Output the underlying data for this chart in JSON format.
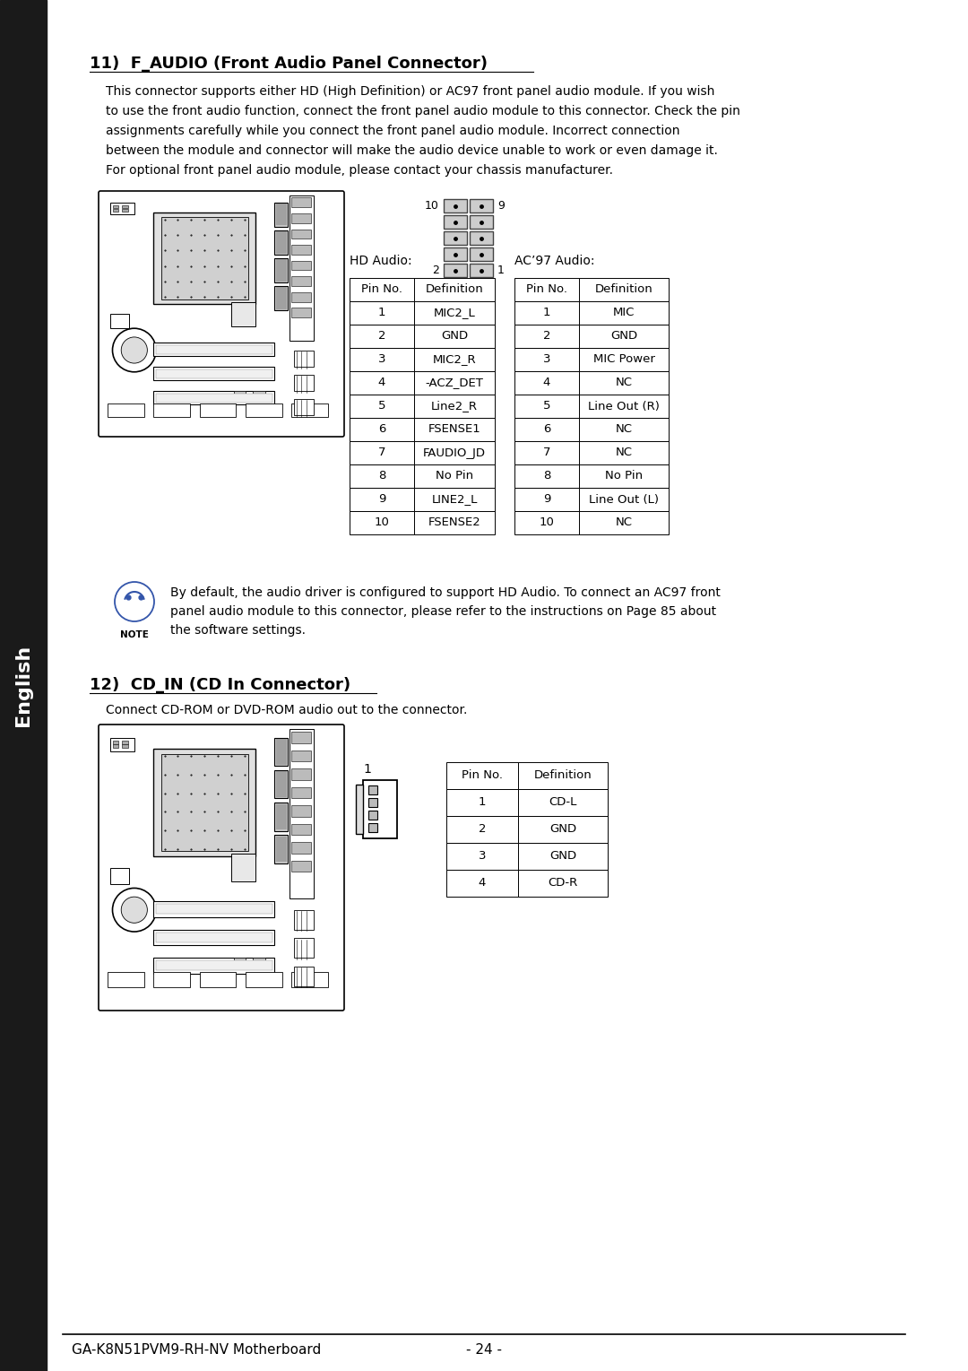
{
  "bg_color": "#ffffff",
  "text_color": "#000000",
  "sidebar_color": "#1a1a1a",
  "sidebar_text": "English",
  "section11_title": "11)  F_AUDIO (Front Audio Panel Connector)",
  "section11_body": [
    "This connector supports either HD (High Definition) or AC97 front panel audio module. If you wish",
    "to use the front audio function, connect the front panel audio module to this connector. Check the pin",
    "assignments carefully while you connect the front panel audio module. Incorrect connection",
    "between the module and connector will make the audio device unable to work or even damage it.",
    "For optional front panel audio module, please contact your chassis manufacturer."
  ],
  "hd_audio_label": "HD Audio:",
  "ac97_audio_label": "AC’97 Audio:",
  "hd_table_headers": [
    "Pin No.",
    "Definition"
  ],
  "ac97_table_headers": [
    "Pin No.",
    "Definition"
  ],
  "hd_table_rows": [
    [
      "1",
      "MIC2_L"
    ],
    [
      "2",
      "GND"
    ],
    [
      "3",
      "MIC2_R"
    ],
    [
      "4",
      "-ACZ_DET"
    ],
    [
      "5",
      "Line2_R"
    ],
    [
      "6",
      "FSENSE1"
    ],
    [
      "7",
      "FAUDIO_JD"
    ],
    [
      "8",
      "No Pin"
    ],
    [
      "9",
      "LINE2_L"
    ],
    [
      "10",
      "FSENSE2"
    ]
  ],
  "ac97_table_rows": [
    [
      "1",
      "MIC"
    ],
    [
      "2",
      "GND"
    ],
    [
      "3",
      "MIC Power"
    ],
    [
      "4",
      "NC"
    ],
    [
      "5",
      "Line Out (R)"
    ],
    [
      "6",
      "NC"
    ],
    [
      "7",
      "NC"
    ],
    [
      "8",
      "No Pin"
    ],
    [
      "9",
      "Line Out (L)"
    ],
    [
      "10",
      "NC"
    ]
  ],
  "note_text": [
    "By default, the audio driver is configured to support HD Audio. To connect an AC97 front",
    "panel audio module to this connector, please refer to the instructions on Page 85 about",
    "the software settings."
  ],
  "section12_title": "12)  CD_IN (CD In Connector)",
  "section12_body": "Connect CD-ROM or DVD-ROM audio out to the connector.",
  "cd_table_headers": [
    "Pin No.",
    "Definition"
  ],
  "cd_table_rows": [
    [
      "1",
      "CD-L"
    ],
    [
      "2",
      "GND"
    ],
    [
      "3",
      "GND"
    ],
    [
      "4",
      "CD-R"
    ]
  ],
  "footer_left": "GA-K8N51PVM9-RH-NV Motherboard",
  "footer_center": "- 24 -"
}
